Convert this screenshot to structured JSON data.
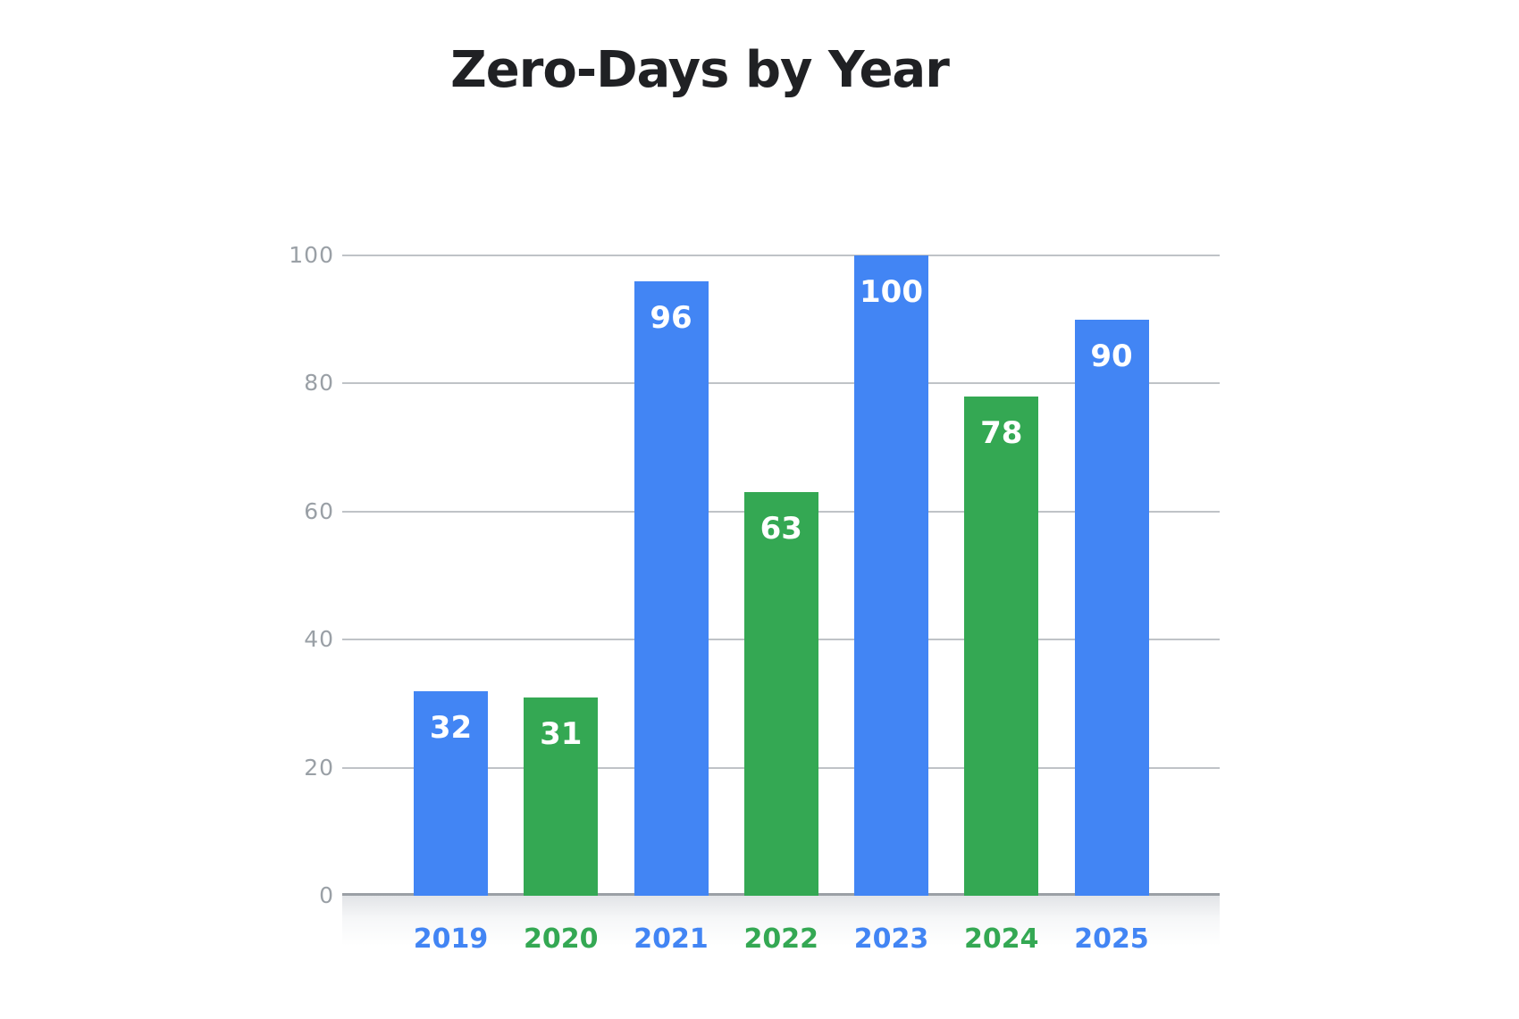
{
  "chart": {
    "title": "Zero-Days by Year"
  },
  "chart_data": {
    "type": "bar",
    "title": "Zero-Days by Year",
    "categories": [
      "2019",
      "2020",
      "2021",
      "2022",
      "2023",
      "2024",
      "2025"
    ],
    "values": [
      32,
      31,
      96,
      63,
      100,
      78,
      90
    ],
    "bar_colors": [
      "#4285F4",
      "#34A853",
      "#4285F4",
      "#34A853",
      "#4285F4",
      "#34A853",
      "#4285F4"
    ],
    "xlabel": "",
    "ylabel": "",
    "ylim": [
      0,
      100
    ],
    "yticks": [
      0,
      20,
      40,
      60,
      80,
      100
    ],
    "grid": true,
    "legend": "none",
    "value_label_position": "inside-top",
    "colors": {
      "blue": "#4285F4",
      "green": "#34A853",
      "title_text": "#202124",
      "tick_label": "#9aa0a6",
      "gridline": "#bfc3c7",
      "baseline": "#9ba0a5",
      "value_label": "#ffffff",
      "axis_band_top": "#e2e4e7"
    }
  }
}
